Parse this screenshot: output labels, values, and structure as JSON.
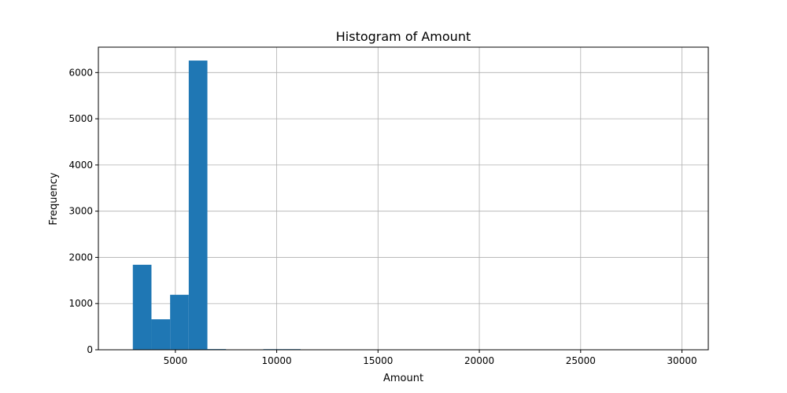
{
  "chart_data": {
    "type": "bar",
    "title": "Histogram of Amount",
    "xlabel": "Amount",
    "ylabel": "Frequency",
    "xlim": [
      1200,
      31300
    ],
    "ylim": [
      0,
      6550
    ],
    "xticks": [
      5000,
      10000,
      15000,
      20000,
      25000,
      30000
    ],
    "yticks": [
      0,
      1000,
      2000,
      3000,
      4000,
      5000,
      6000
    ],
    "grid": true,
    "bar_color": "#1f77b4",
    "bins": [
      {
        "x0": 2900,
        "x1": 3820,
        "count": 1840
      },
      {
        "x0": 3820,
        "x1": 4740,
        "count": 660
      },
      {
        "x0": 4740,
        "x1": 5660,
        "count": 1190
      },
      {
        "x0": 5660,
        "x1": 6580,
        "count": 6260
      },
      {
        "x0": 6580,
        "x1": 7500,
        "count": 15
      },
      {
        "x0": 9340,
        "x1": 10260,
        "count": 8
      },
      {
        "x0": 10260,
        "x1": 11180,
        "count": 10
      }
    ]
  }
}
